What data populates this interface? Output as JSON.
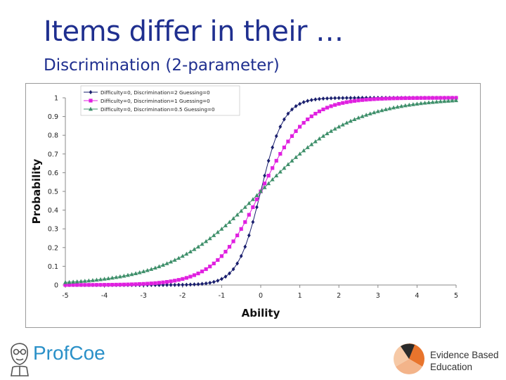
{
  "slide": {
    "title": "Items differ in their …",
    "subtitle": "Discrimination (2-parameter)"
  },
  "chart_data": {
    "type": "line",
    "xlabel": "Ability",
    "ylabel": "Probability",
    "xlim": [
      -5,
      5
    ],
    "ylim": [
      0,
      1
    ],
    "x_ticks": [
      -5,
      -4,
      -3,
      -2,
      -1,
      0,
      1,
      2,
      3,
      4,
      5
    ],
    "y_ticks": [
      0,
      0.1,
      0.2,
      0.3,
      0.4,
      0.5,
      0.6,
      0.7,
      0.8,
      0.9,
      1
    ],
    "x_step": 0.1,
    "grid": false,
    "legend_position": "top-left",
    "series": [
      {
        "name": "Difficulty=0, Discrimination=2  Guessing=0",
        "difficulty": 0,
        "discrimination": 2,
        "guessing": 0,
        "color": "#1a1f6e",
        "marker": "diamond"
      },
      {
        "name": "Difficulty=0, Discrimination=1  Guessing=0",
        "difficulty": 0,
        "discrimination": 1,
        "guessing": 0,
        "color": "#e020e0",
        "marker": "square"
      },
      {
        "name": "Difficulty=0, Discrimination=0.5  Guessing=0",
        "difficulty": 0,
        "discrimination": 0.5,
        "guessing": 0,
        "color": "#3e8f6a",
        "marker": "triangle"
      }
    ]
  },
  "footer": {
    "left_logo": "ProfCoe",
    "left_logo_color": "#2a90c8",
    "right_logo_line1": "Evidence Based",
    "right_logo_line2": "Education",
    "right_logo_colors": [
      "#2b2b2b",
      "#e8742c",
      "#f3b48a"
    ]
  }
}
